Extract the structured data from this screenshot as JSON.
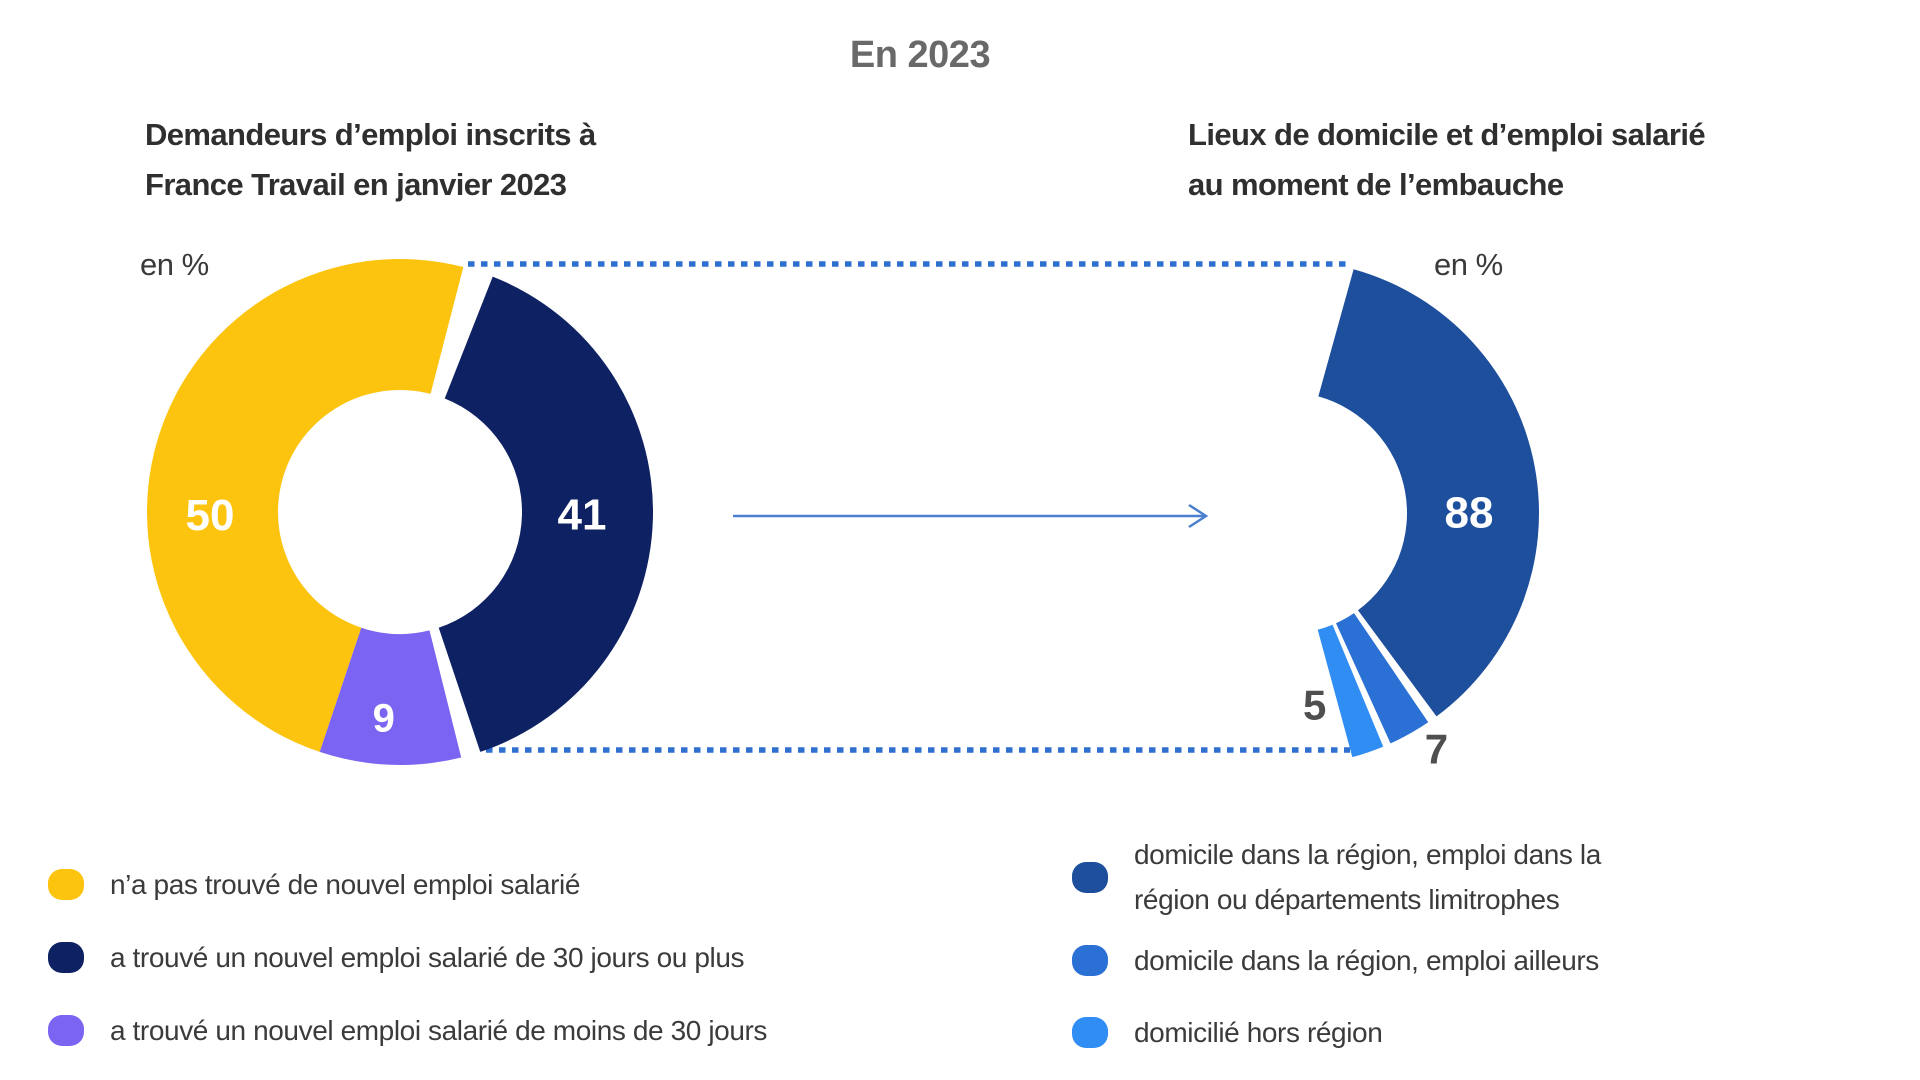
{
  "page": {
    "title": "En 2023"
  },
  "connector": {
    "dotted_line_color": "#2e6fd0",
    "arrow_color": "#4b7fd0"
  },
  "value_label_outside_color": "#4f4f4f",
  "chart_data": [
    {
      "type": "pie",
      "subtype": "donut",
      "title": "Demandeurs d’emploi inscrits à France Travail en janvier 2023",
      "title_lines": [
        "Demandeurs d’emploi inscrits à",
        "France Travail en janvier 2023"
      ],
      "unit_label": "en %",
      "legend_position": "bottom-left",
      "segments": [
        {
          "label": "n’a pas trouvé de nouvel emploi salarié",
          "value": 50,
          "color": "#FCC40E"
        },
        {
          "label": "a trouvé un nouvel emploi salarié de 30 jours ou plus",
          "value": 41,
          "color": "#0E2163"
        },
        {
          "label": "a trouvé un nouvel emploi salarié de moins de 30 jours",
          "value": 9,
          "color": "#7C64F2"
        }
      ]
    },
    {
      "type": "pie",
      "subtype": "donut-partial-arc",
      "title": "Lieux de domicile et d’emploi salarié au moment de l’embauche",
      "title_lines": [
        "Lieux de domicile et d’emploi salarié",
        "au moment de l’embauche"
      ],
      "unit_label": "en %",
      "legend_position": "bottom-right",
      "segments": [
        {
          "label": "domicile dans la région, emploi dans la région ou départements limitrophes",
          "label_lines": [
            "domicile dans la région, emploi dans la",
            "région ou départements limitrophes"
          ],
          "value": 88,
          "color": "#1D4F9D"
        },
        {
          "label": "domicile dans la région, emploi ailleurs",
          "value": 7,
          "color": "#2B70D5"
        },
        {
          "label": "domicilié hors région",
          "value": 5,
          "color": "#2F8DF3"
        }
      ]
    }
  ]
}
